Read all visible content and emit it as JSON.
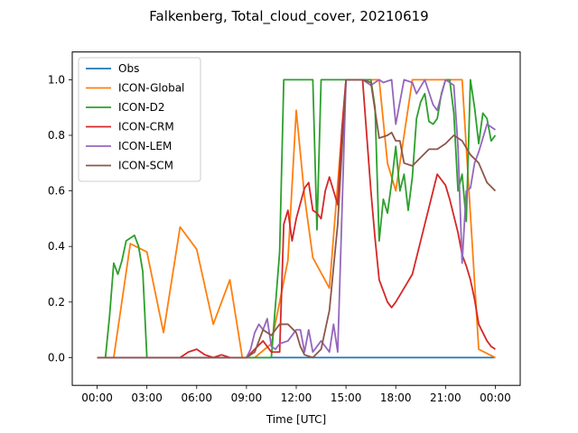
{
  "chart_data": {
    "type": "line",
    "title": "Falkenberg, Total_cloud_cover, 20210619",
    "xlabel": "Time [UTC]",
    "ylabel": "",
    "xlim": [
      -1.5,
      25.5
    ],
    "ylim": [
      -0.1,
      1.1
    ],
    "xticks": [
      0,
      3,
      6,
      9,
      12,
      15,
      18,
      21,
      24
    ],
    "xtick_labels": [
      "00:00",
      "03:00",
      "06:00",
      "09:00",
      "12:00",
      "15:00",
      "18:00",
      "21:00",
      "00:00"
    ],
    "yticks": [
      0.0,
      0.2,
      0.4,
      0.6,
      0.8,
      1.0
    ],
    "ytick_labels": [
      "0.0",
      "0.2",
      "0.4",
      "0.6",
      "0.8",
      "1.0"
    ],
    "legend_position": "upper-left",
    "series": [
      {
        "name": "Obs",
        "color": "#1f77b4",
        "points": [
          [
            0,
            0
          ],
          [
            24,
            0
          ]
        ]
      },
      {
        "name": "ICON-Global",
        "color": "#ff7f0e",
        "points": [
          [
            0,
            0
          ],
          [
            1,
            0
          ],
          [
            2,
            0.41
          ],
          [
            3,
            0.38
          ],
          [
            4,
            0.09
          ],
          [
            5,
            0.47
          ],
          [
            6,
            0.39
          ],
          [
            7,
            0.12
          ],
          [
            8,
            0.28
          ],
          [
            8.75,
            0
          ],
          [
            9.5,
            0
          ],
          [
            10.5,
            0.05
          ],
          [
            11,
            0.2
          ],
          [
            11.5,
            0.35
          ],
          [
            12,
            0.89
          ],
          [
            12.5,
            0.58
          ],
          [
            13,
            0.36
          ],
          [
            14,
            0.25
          ],
          [
            15,
            1
          ],
          [
            16,
            1
          ],
          [
            17,
            1
          ],
          [
            17.5,
            0.7
          ],
          [
            18,
            0.6
          ],
          [
            18.5,
            0.8
          ],
          [
            19,
            1
          ],
          [
            20,
            1
          ],
          [
            21,
            1
          ],
          [
            22,
            1
          ],
          [
            23,
            0.03
          ],
          [
            24,
            0
          ]
        ]
      },
      {
        "name": "ICON-D2",
        "color": "#2ca02c",
        "points": [
          [
            0,
            0
          ],
          [
            0.5,
            0
          ],
          [
            0.75,
            0.15
          ],
          [
            1,
            0.34
          ],
          [
            1.25,
            0.3
          ],
          [
            1.5,
            0.35
          ],
          [
            1.75,
            0.42
          ],
          [
            2.25,
            0.44
          ],
          [
            2.5,
            0.4
          ],
          [
            2.75,
            0.31
          ],
          [
            3,
            0
          ],
          [
            9,
            0
          ],
          [
            10.5,
            0
          ],
          [
            11,
            0.38
          ],
          [
            11.25,
            1
          ],
          [
            13,
            1
          ],
          [
            13.25,
            0.46
          ],
          [
            13.5,
            1
          ],
          [
            16.5,
            1
          ],
          [
            16.75,
            0.9
          ],
          [
            17,
            0.42
          ],
          [
            17.25,
            0.57
          ],
          [
            17.5,
            0.52
          ],
          [
            17.75,
            0.63
          ],
          [
            18,
            0.76
          ],
          [
            18.25,
            0.6
          ],
          [
            18.5,
            0.66
          ],
          [
            18.75,
            0.53
          ],
          [
            19,
            0.65
          ],
          [
            19.25,
            0.86
          ],
          [
            19.5,
            0.92
          ],
          [
            19.75,
            0.95
          ],
          [
            20,
            0.85
          ],
          [
            20.25,
            0.84
          ],
          [
            20.5,
            0.86
          ],
          [
            20.75,
            0.95
          ],
          [
            21,
            1
          ],
          [
            21.25,
            1
          ],
          [
            21.5,
            0.88
          ],
          [
            21.75,
            0.6
          ],
          [
            22,
            0.66
          ],
          [
            22.25,
            0.49
          ],
          [
            22.5,
            1
          ],
          [
            22.75,
            0.9
          ],
          [
            23,
            0.77
          ],
          [
            23.25,
            0.88
          ],
          [
            23.5,
            0.86
          ],
          [
            23.75,
            0.78
          ],
          [
            24,
            0.8
          ]
        ]
      },
      {
        "name": "ICON-CRM",
        "color": "#d62728",
        "points": [
          [
            0,
            0
          ],
          [
            5,
            0
          ],
          [
            5.5,
            0.02
          ],
          [
            6,
            0.03
          ],
          [
            6.5,
            0.01
          ],
          [
            7,
            0
          ],
          [
            7.5,
            0.01
          ],
          [
            8,
            0
          ],
          [
            9,
            0
          ],
          [
            9.5,
            0.03
          ],
          [
            10,
            0.06
          ],
          [
            10.5,
            0.02
          ],
          [
            11,
            0.02
          ],
          [
            11.25,
            0.48
          ],
          [
            11.5,
            0.53
          ],
          [
            11.75,
            0.42
          ],
          [
            12,
            0.5
          ],
          [
            12.5,
            0.61
          ],
          [
            12.75,
            0.63
          ],
          [
            13,
            0.53
          ],
          [
            13.25,
            0.52
          ],
          [
            13.5,
            0.5
          ],
          [
            13.75,
            0.6
          ],
          [
            14,
            0.65
          ],
          [
            14.5,
            0.55
          ],
          [
            14.75,
            0.82
          ],
          [
            15,
            1
          ],
          [
            16,
            1
          ],
          [
            16.5,
            0.6
          ],
          [
            16.75,
            0.43
          ],
          [
            17,
            0.28
          ],
          [
            17.5,
            0.2
          ],
          [
            17.75,
            0.18
          ],
          [
            18,
            0.2
          ],
          [
            18.5,
            0.25
          ],
          [
            19,
            0.3
          ],
          [
            19.5,
            0.42
          ],
          [
            20,
            0.54
          ],
          [
            20.25,
            0.6
          ],
          [
            20.5,
            0.66
          ],
          [
            21,
            0.62
          ],
          [
            21.25,
            0.57
          ],
          [
            21.75,
            0.45
          ],
          [
            22,
            0.37
          ],
          [
            22.25,
            0.33
          ],
          [
            22.5,
            0.28
          ],
          [
            22.75,
            0.21
          ],
          [
            23,
            0.12
          ],
          [
            23.5,
            0.06
          ],
          [
            23.75,
            0.04
          ],
          [
            24,
            0.03
          ]
        ]
      },
      {
        "name": "ICON-LEM",
        "color": "#9467bd",
        "points": [
          [
            0,
            0
          ],
          [
            9,
            0
          ],
          [
            9.25,
            0.03
          ],
          [
            9.5,
            0.09
          ],
          [
            9.75,
            0.12
          ],
          [
            10,
            0.1
          ],
          [
            10.25,
            0.14
          ],
          [
            10.5,
            0.04
          ],
          [
            10.75,
            0.03
          ],
          [
            11,
            0.05
          ],
          [
            11.5,
            0.06
          ],
          [
            12,
            0.1
          ],
          [
            12.25,
            0.1
          ],
          [
            12.5,
            0.02
          ],
          [
            12.75,
            0.1
          ],
          [
            13,
            0.02
          ],
          [
            13.25,
            0.04
          ],
          [
            13.5,
            0.06
          ],
          [
            14,
            0.02
          ],
          [
            14.25,
            0.12
          ],
          [
            14.5,
            0.02
          ],
          [
            15,
            1
          ],
          [
            16,
            1
          ],
          [
            16.5,
            0.98
          ],
          [
            17,
            1
          ],
          [
            17.25,
            0.99
          ],
          [
            17.75,
            1
          ],
          [
            18,
            0.84
          ],
          [
            18.5,
            1
          ],
          [
            19,
            0.99
          ],
          [
            19.25,
            0.95
          ],
          [
            19.75,
            1
          ],
          [
            20.25,
            0.91
          ],
          [
            20.5,
            0.89
          ],
          [
            21,
            1
          ],
          [
            21.5,
            0.98
          ],
          [
            21.75,
            0.76
          ],
          [
            22,
            0.34
          ],
          [
            22.25,
            0.6
          ],
          [
            22.5,
            0.61
          ],
          [
            22.75,
            0.7
          ],
          [
            23,
            0.74
          ],
          [
            23.25,
            0.79
          ],
          [
            23.5,
            0.84
          ],
          [
            24,
            0.82
          ]
        ]
      },
      {
        "name": "ICON-SCM",
        "color": "#8c564b",
        "points": [
          [
            0,
            0
          ],
          [
            9,
            0
          ],
          [
            9.5,
            0.02
          ],
          [
            10,
            0.1
          ],
          [
            10.5,
            0.08
          ],
          [
            11,
            0.12
          ],
          [
            11.5,
            0.12
          ],
          [
            12,
            0.09
          ],
          [
            12.25,
            0.04
          ],
          [
            12.5,
            0.01
          ],
          [
            13,
            0
          ],
          [
            13.5,
            0.03
          ],
          [
            14,
            0.17
          ],
          [
            14.5,
            0.48
          ],
          [
            15,
            1
          ],
          [
            16,
            1
          ],
          [
            16.5,
            0.99
          ],
          [
            17,
            0.79
          ],
          [
            17.5,
            0.8
          ],
          [
            17.75,
            0.81
          ],
          [
            18,
            0.78
          ],
          [
            18.25,
            0.78
          ],
          [
            18.5,
            0.7
          ],
          [
            19,
            0.69
          ],
          [
            19.5,
            0.72
          ],
          [
            20,
            0.75
          ],
          [
            20.5,
            0.75
          ],
          [
            21,
            0.77
          ],
          [
            21.5,
            0.8
          ],
          [
            22,
            0.78
          ],
          [
            22.5,
            0.73
          ],
          [
            23,
            0.7
          ],
          [
            23.5,
            0.63
          ],
          [
            24,
            0.6
          ]
        ]
      }
    ]
  }
}
